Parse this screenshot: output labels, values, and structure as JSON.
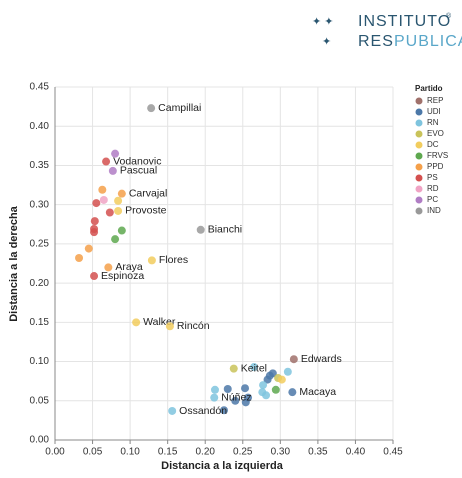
{
  "header": {
    "line1": "INSTITUTO",
    "mark": "®",
    "line2a": "RES",
    "line2b": "PUBLICA"
  },
  "chart_data": {
    "type": "scatter",
    "x_label": "Distancia a la izquierda",
    "y_label": "Distancia a la derecha",
    "legend_title": "Partido",
    "legend": "right",
    "grid": true,
    "xlim": [
      0,
      0.45
    ],
    "ylim": [
      0,
      0.45
    ],
    "xticks": [
      {
        "value": 0,
        "label": "0.00"
      },
      {
        "value": 0.05,
        "label": "0.05"
      },
      {
        "value": 0.1,
        "label": "0.10"
      },
      {
        "value": 0.15,
        "label": "0.15"
      },
      {
        "value": 0.2,
        "label": "0.20"
      },
      {
        "value": 0.25,
        "label": "0.25"
      },
      {
        "value": 0.3,
        "label": "0.30"
      },
      {
        "value": 0.35,
        "label": "0.35"
      },
      {
        "value": 0.4,
        "label": "0.40"
      },
      {
        "value": 0.45,
        "label": "0.45"
      }
    ],
    "yticks": [
      {
        "value": 0,
        "label": "0.00"
      },
      {
        "value": 0.05,
        "label": "0.05"
      },
      {
        "value": 0.1,
        "label": "0.10"
      },
      {
        "value": 0.15,
        "label": "0.15"
      },
      {
        "value": 0.2,
        "label": "0.20"
      },
      {
        "value": 0.25,
        "label": "0.25"
      },
      {
        "value": 0.3,
        "label": "0.30"
      },
      {
        "value": 0.35,
        "label": "0.35"
      },
      {
        "value": 0.4,
        "label": "0.40"
      },
      {
        "value": 0.45,
        "label": "0.45"
      }
    ],
    "series": [
      {
        "name": "REP",
        "color": "#a0716b",
        "x": [
          0.318
        ],
        "y": [
          0.103
        ],
        "labels": [
          "Edwards"
        ]
      },
      {
        "name": "UDI",
        "color": "#4c78a8",
        "x": [
          0.286,
          0.29,
          0.283,
          0.316,
          0.253,
          0.23,
          0.257,
          0.254,
          0.24,
          0.225
        ],
        "y": [
          0.082,
          0.085,
          0.077,
          0.061,
          0.066,
          0.065,
          0.054,
          0.048,
          0.05,
          0.038
        ],
        "labels": [
          null,
          null,
          null,
          "Macaya",
          null,
          null,
          null,
          null,
          null,
          null
        ]
      },
      {
        "name": "RN",
        "color": "#7fc4de",
        "x": [
          0.265,
          0.31,
          0.277,
          0.276,
          0.213,
          0.212,
          0.156,
          0.281
        ],
        "y": [
          0.093,
          0.087,
          0.07,
          0.061,
          0.064,
          0.054,
          0.037,
          0.057
        ],
        "labels": [
          null,
          null,
          null,
          null,
          null,
          "Núñez",
          "Ossandón",
          null
        ]
      },
      {
        "name": "EVO",
        "color": "#c9c35a",
        "x": [
          0.238,
          0.297
        ],
        "y": [
          0.091,
          0.079
        ],
        "labels": [
          "Keitel",
          null
        ]
      },
      {
        "name": "DC",
        "color": "#f2cd5e",
        "x": [
          0.084,
          0.084,
          0.129,
          0.108,
          0.153,
          0.302
        ],
        "y": [
          0.305,
          0.292,
          0.229,
          0.15,
          0.145,
          0.077
        ],
        "labels": [
          null,
          "Provoste",
          "Flores",
          "Walker",
          "Rincón",
          null
        ]
      },
      {
        "name": "FRVS",
        "color": "#5ea84f",
        "x": [
          0.089,
          0.08,
          0.294
        ],
        "y": [
          0.267,
          0.256,
          0.064
        ],
        "labels": [
          null,
          null,
          null
        ]
      },
      {
        "name": "PPD",
        "color": "#f5a04a",
        "x": [
          0.063,
          0.089,
          0.045,
          0.032,
          0.071
        ],
        "y": [
          0.319,
          0.314,
          0.244,
          0.232,
          0.22
        ],
        "labels": [
          null,
          "Carvajal",
          null,
          null,
          "Araya"
        ]
      },
      {
        "name": "PS",
        "color": "#d4504f",
        "x": [
          0.068,
          0.055,
          0.073,
          0.053,
          0.052,
          0.052,
          0.052
        ],
        "y": [
          0.355,
          0.302,
          0.29,
          0.279,
          0.269,
          0.265,
          0.209
        ],
        "labels": [
          "Vodanovic",
          null,
          null,
          null,
          null,
          null,
          "Espinoza"
        ]
      },
      {
        "name": "RD",
        "color": "#f0a3c4",
        "x": [
          0.065
        ],
        "y": [
          0.306
        ],
        "labels": [
          null
        ]
      },
      {
        "name": "PC",
        "color": "#b07dc4",
        "x": [
          0.08,
          0.077
        ],
        "y": [
          0.365,
          0.343
        ],
        "labels": [
          null,
          "Pascual"
        ]
      },
      {
        "name": "IND",
        "color": "#999999",
        "x": [
          0.128,
          0.194
        ],
        "y": [
          0.423,
          0.268
        ],
        "labels": [
          "Campillai",
          "Bianchi"
        ]
      }
    ]
  }
}
